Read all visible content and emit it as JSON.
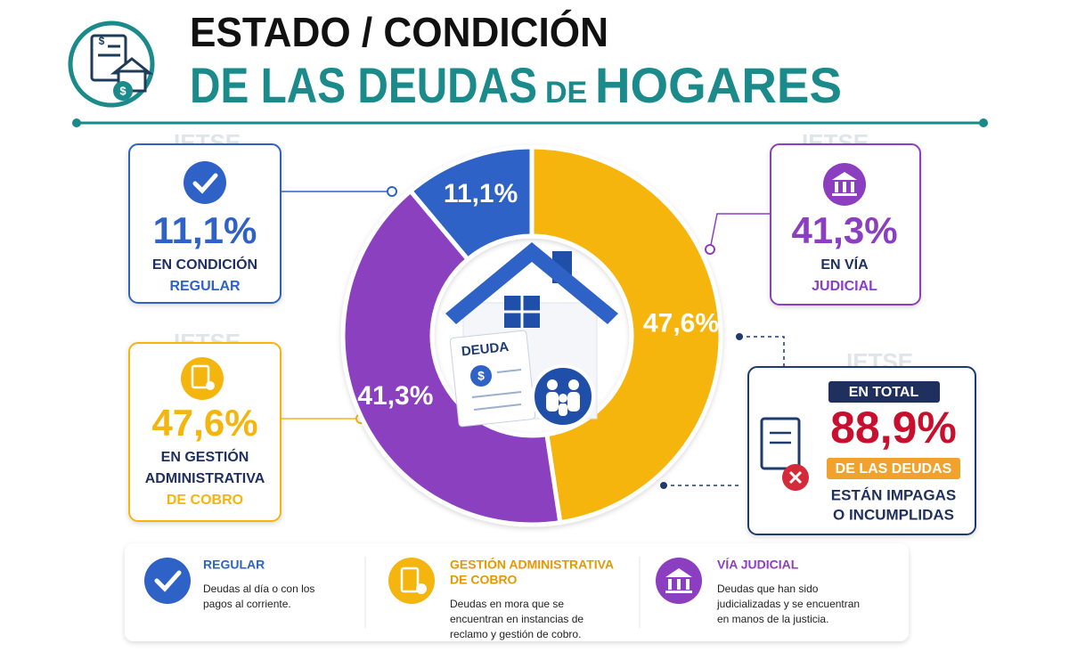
{
  "header": {
    "title_line1": "ESTADO / CONDICIÓN",
    "title_line2": "DE LAS DEUDAS",
    "title_line2_small": "DE",
    "title_line2_end": "HOGARES"
  },
  "watermark": "IETSE",
  "icon_symbol": "$",
  "center_label": "DEUDA",
  "chart_data": {
    "type": "pie",
    "values": [
      11.1,
      47.6,
      41.3
    ],
    "value_labels": [
      "11,1%",
      "47,6%",
      "41,3%"
    ],
    "colors": [
      "#2f62c6",
      "#f5b50f",
      "#8b3fc0"
    ]
  },
  "callouts": [
    {
      "lines": [
        "EN CONDICIÓN",
        "REGULAR"
      ]
    },
    {
      "lines": [
        "EN GESTIÓN",
        "ADMINISTRATIVA",
        "DE COBRO"
      ]
    },
    {
      "lines": [
        "EN VÍA",
        "JUDICIAL"
      ]
    }
  ],
  "total": {
    "heading": "EN TOTAL",
    "value_label": "88,9%",
    "subheading": "DE LAS DEUDAS",
    "lines": [
      "ESTÁN IMPAGAS",
      "O INCUMPLIDAS"
    ]
  },
  "legend": [
    {
      "title": [
        "REGULAR"
      ],
      "text": [
        "Deudas al día o con los",
        "pagos al corriente."
      ]
    },
    {
      "title": [
        "GESTIÓN ADMINISTRATIVA",
        "DE COBRO"
      ],
      "text": [
        "Deudas en mora que se",
        "encuentran en instancias de",
        "reclamo y gestión de cobro."
      ]
    },
    {
      "title": [
        "VÍA JUDICIAL"
      ],
      "text": [
        "Deudas que han sido",
        "judicializadas y se encuentran",
        "en manos de la justicia."
      ]
    }
  ]
}
